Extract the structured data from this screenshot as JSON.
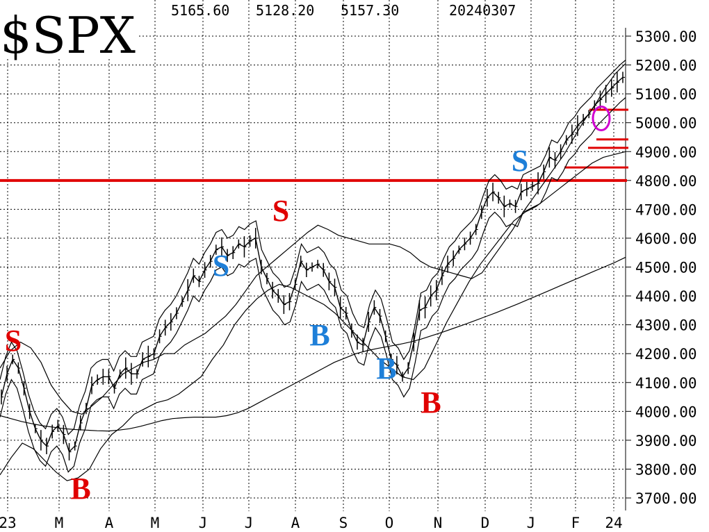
{
  "chart_data": {
    "type": "line",
    "title": "$SPX",
    "header": {
      "high": "5165.60",
      "low": "5128.20",
      "close": "5157.30",
      "date": "20240307"
    },
    "y_ticks": [
      "5300.00",
      "5200.00",
      "5100.00",
      "5000.00",
      "4900.00",
      "4800.00",
      "4700.00",
      "4600.00",
      "4500.00",
      "4400.00",
      "4300.00",
      "4200.00",
      "4100.00",
      "4000.00",
      "3900.00",
      "3800.00",
      "3700.00"
    ],
    "ylim": [
      3670,
      5390
    ],
    "x_ticks": [
      "23",
      "M",
      "A",
      "M",
      "J",
      "J",
      "A",
      "S",
      "O",
      "N",
      "D",
      "J",
      "F",
      "24"
    ],
    "grid": true,
    "colors": {
      "red": "#e00000",
      "blue": "#1e7fd8",
      "magenta": "#d000d0",
      "price": "#000000"
    },
    "horizontal_lines": [
      {
        "level": 4800,
        "color": "#e00000",
        "span": "full"
      },
      {
        "level": 5045,
        "color": "#e00000",
        "span": "short"
      },
      {
        "level": 4942,
        "color": "#e00000",
        "span": "short"
      },
      {
        "level": 4913,
        "color": "#e00000",
        "span": "short"
      },
      {
        "level": 4845,
        "color": "#e00000",
        "span": "short"
      }
    ],
    "highlight_circle": {
      "center_value": 5015,
      "color": "#d000d0"
    },
    "signals": [
      {
        "label": "S",
        "color": "#e00000"
      },
      {
        "label": "B",
        "color": "#e00000"
      },
      {
        "label": "S",
        "color": "#1e7fd8"
      },
      {
        "label": "S",
        "color": "#e00000"
      },
      {
        "label": "B",
        "color": "#1e7fd8"
      },
      {
        "label": "B",
        "color": "#1e7fd8"
      },
      {
        "label": "B",
        "color": "#e00000"
      },
      {
        "label": "S",
        "color": "#1e7fd8"
      }
    ],
    "series": [
      {
        "role": "price",
        "values": [
          4050,
          4130,
          4180,
          4150,
          4080,
          4000,
          3940,
          3900,
          3880,
          3930,
          3950,
          3920,
          3860,
          3880,
          3960,
          4010,
          4090,
          4110,
          4120,
          4120,
          4080,
          4130,
          4150,
          4130,
          4130,
          4180,
          4190,
          4200,
          4260,
          4290,
          4310,
          4340,
          4380,
          4420,
          4470,
          4450,
          4490,
          4520,
          4560,
          4570,
          4540,
          4550,
          4580,
          4570,
          4590,
          4600,
          4500,
          4460,
          4420,
          4400,
          4370,
          4380,
          4440,
          4520,
          4490,
          4500,
          4510,
          4490,
          4450,
          4430,
          4360,
          4340,
          4280,
          4240,
          4230,
          4310,
          4360,
          4330,
          4260,
          4180,
          4160,
          4120,
          4150,
          4240,
          4350,
          4360,
          4400,
          4420,
          4470,
          4510,
          4530,
          4560,
          4580,
          4600,
          4630,
          4690,
          4740,
          4760,
          4740,
          4710,
          4720,
          4710,
          4760,
          4770,
          4780,
          4790,
          4830,
          4880,
          4870,
          4900,
          4940,
          4960,
          4990,
          5010,
          5030,
          5060,
          5080,
          5100,
          5120,
          5140,
          5157
        ]
      },
      {
        "role": "moving-average",
        "values": [
          3985,
          3975,
          3965,
          3957,
          3950,
          3945,
          3940,
          3937,
          3935,
          3933,
          3932,
          3935,
          3940,
          3948,
          3958,
          3968,
          3975,
          3978,
          3980,
          3980,
          3980,
          3985,
          3995,
          4010,
          4030,
          4050,
          4070,
          4090,
          4110,
          4130,
          4150,
          4170,
          4185,
          4200,
          4210,
          4218,
          4225,
          4232,
          4240,
          4250,
          4262,
          4274,
          4287,
          4300,
          4314,
          4328,
          4342,
          4357,
          4372,
          4388,
          4404,
          4420,
          4436,
          4452,
          4468,
          4484,
          4500,
          4516,
          4534
        ]
      },
      {
        "role": "upper-band",
        "values": [
          4150,
          4210,
          4240,
          4220,
          4170,
          4090,
          4040,
          4000,
          3990,
          4020,
          4050,
          4090,
          4130,
          4150,
          4170,
          4180,
          4200,
          4200,
          4230,
          4250,
          4270,
          4300,
          4330,
          4370,
          4420,
          4470,
          4500,
          4530,
          4560,
          4590,
          4620,
          4645,
          4630,
          4610,
          4600,
          4590,
          4580,
          4580,
          4580,
          4570,
          4550,
          4520,
          4500,
          4490,
          4480,
          4470,
          4460,
          4480,
          4530,
          4580,
          4630,
          4690,
          4740,
          4790,
          4840,
          4890,
          4950,
          5010,
          5060,
          5120,
          5170,
          5205
        ]
      },
      {
        "role": "lower-band",
        "values": [
          3780,
          3840,
          3890,
          3870,
          3830,
          3790,
          3760,
          3770,
          3800,
          3870,
          3920,
          3950,
          3990,
          4010,
          4030,
          4040,
          4060,
          4090,
          4120,
          4180,
          4230,
          4300,
          4350,
          4390,
          4420,
          4440,
          4430,
          4410,
          4390,
          4370,
          4340,
          4300,
          4260,
          4220,
          4180,
          4150,
          4120,
          4110,
          4150,
          4230,
          4310,
          4380,
          4450,
          4510,
          4560,
          4610,
          4660,
          4690,
          4710,
          4740,
          4770,
          4800,
          4830,
          4860,
          4880,
          4890,
          4900
        ]
      }
    ]
  }
}
